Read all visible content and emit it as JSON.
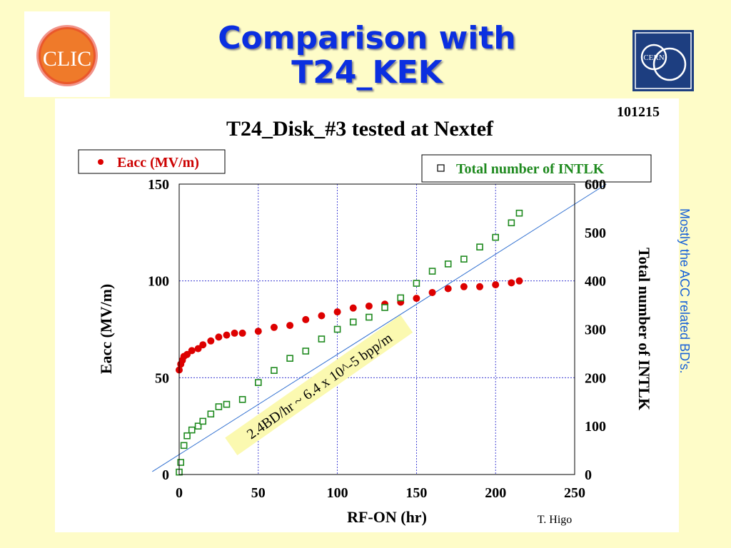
{
  "header": {
    "title_line1": "Comparison with",
    "title_line2": "T24_KEK",
    "left_logo_text": "CLIC",
    "right_logo_text": "CERN"
  },
  "side_note": "Mostly the ACC related BD's.",
  "chart_data": {
    "type": "scatter",
    "title": "T24_Disk_#3 tested at Nextef",
    "id_label": "101215",
    "credit": "T. Higo",
    "xlabel": "RF-ON (hr)",
    "ylabel_left": "Eacc (MV/m)",
    "ylabel_right": "Total number of INTLK",
    "xlim": [
      0,
      250
    ],
    "ylim_left": [
      0,
      150
    ],
    "ylim_right": [
      0,
      600
    ],
    "x_ticks": [
      0,
      50,
      100,
      150,
      200,
      250
    ],
    "y_ticks_left": [
      0,
      50,
      100,
      150
    ],
    "y_ticks_right": [
      0,
      100,
      200,
      300,
      400,
      500,
      600
    ],
    "grid": true,
    "annotation": "2.4BD/hr ~ 6.4 x 10^-5 bpp/m",
    "colors": {
      "eacc": "#dd0000",
      "intlk": "#1f8a1f",
      "fit": "#2f6fd0",
      "grid": "#1c1ccc"
    },
    "fit_line": {
      "x": [
        -17,
        270
      ],
      "y_right": [
        6,
        600
      ]
    },
    "series": [
      {
        "name": "Eacc (MV/m)",
        "axis": "left",
        "marker": "filled-circle",
        "x": [
          0,
          1,
          2,
          3,
          5,
          8,
          12,
          15,
          20,
          25,
          30,
          35,
          40,
          50,
          60,
          70,
          80,
          90,
          100,
          110,
          120,
          130,
          140,
          150,
          160,
          170,
          180,
          190,
          200,
          210,
          215
        ],
        "y": [
          54,
          57,
          59,
          61,
          62,
          64,
          65,
          67,
          69,
          71,
          72,
          73,
          73,
          74,
          76,
          77,
          80,
          82,
          84,
          86,
          87,
          88,
          89,
          91,
          94,
          96,
          97,
          97,
          98,
          99,
          100
        ]
      },
      {
        "name": "Total number of INTLK",
        "axis": "right",
        "marker": "open-square",
        "x": [
          0,
          1,
          3,
          5,
          8,
          12,
          15,
          20,
          25,
          30,
          40,
          50,
          60,
          70,
          80,
          90,
          100,
          110,
          120,
          130,
          140,
          150,
          160,
          170,
          180,
          190,
          200,
          210,
          215
        ],
        "y": [
          5,
          25,
          60,
          80,
          92,
          100,
          110,
          125,
          140,
          145,
          155,
          190,
          215,
          240,
          255,
          280,
          300,
          315,
          325,
          345,
          365,
          395,
          420,
          435,
          445,
          470,
          490,
          520,
          540
        ]
      }
    ]
  }
}
